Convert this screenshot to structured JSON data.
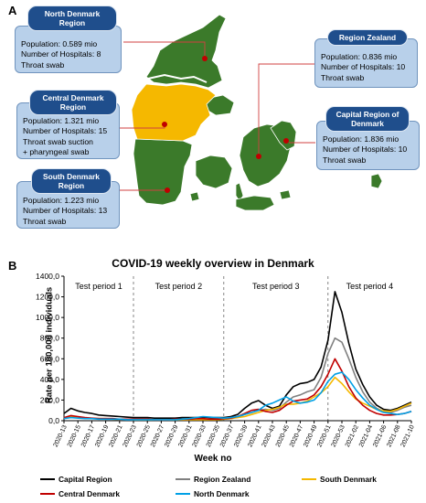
{
  "panels": {
    "a": "A",
    "b": "B"
  },
  "colors": {
    "map_green": "#3b7a2a",
    "map_yellow": "#f5b800",
    "box_fill": "#b8d0ea",
    "header_fill": "#1f4e8c",
    "connector": "#d04040",
    "dot": "#c00000"
  },
  "regions": [
    {
      "key": "north",
      "name_lines": [
        "North Denmark",
        "Region"
      ],
      "lines": [
        "Population: 0.589 mio",
        "Number of Hospitals: 8",
        "Throat swab"
      ]
    },
    {
      "key": "central",
      "name_lines": [
        "Central Denmark",
        "Region"
      ],
      "lines": [
        "Population: 1.321 mio",
        "Number of Hospitals: 15",
        "Throat swab suction",
        "+ pharyngeal  swab"
      ]
    },
    {
      "key": "south",
      "name_lines": [
        "South Denmark",
        "Region"
      ],
      "lines": [
        "Population: 1.223 mio",
        "Number of Hospitals: 13",
        "Throat swab"
      ]
    },
    {
      "key": "zealand",
      "name_lines": [
        "Region Zealand"
      ],
      "lines": [
        "Population: 0.836 mio",
        "Number of Hospitals: 10",
        "Throat swab"
      ]
    },
    {
      "key": "capital",
      "name_lines": [
        "Capital Region of",
        "Denmark"
      ],
      "lines": [
        "Population: 1.836 mio",
        "Number of Hospitals: 10",
        "Throat swab"
      ]
    }
  ],
  "chart_data": {
    "type": "line",
    "title": "COVID-19 weekly overview in Denmark",
    "xlabel": "Week no",
    "ylabel": "Rate per 100,000 individuals",
    "ylim": [
      0,
      1400
    ],
    "yticks": [
      "0,0",
      "200,0",
      "400,0",
      "600,0",
      "800,0",
      "1000,0",
      "1200,0",
      "1400,0"
    ],
    "grid": false,
    "legend_position": "bottom",
    "x": [
      "2020-13",
      "2020-14",
      "2020-15",
      "2020-16",
      "2020-17",
      "2020-18",
      "2020-19",
      "2020-20",
      "2020-21",
      "2020-22",
      "2020-23",
      "2020-24",
      "2020-25",
      "2020-26",
      "2020-27",
      "2020-28",
      "2020-29",
      "2020-30",
      "2020-31",
      "2020-32",
      "2020-33",
      "2020-34",
      "2020-35",
      "2020-36",
      "2020-37",
      "2020-38",
      "2020-39",
      "2020-40",
      "2020-41",
      "2020-42",
      "2020-43",
      "2020-44",
      "2020-45",
      "2020-46",
      "2020-47",
      "2020-48",
      "2020-49",
      "2020-50",
      "2020-51",
      "2020-52",
      "2020-53",
      "2021-01",
      "2021-02",
      "2021-03",
      "2021-04",
      "2021-05",
      "2021-06",
      "2021-07",
      "2021-08",
      "2021-09",
      "2021-10"
    ],
    "x_tick_labels": [
      "2020-13",
      "2020-15",
      "2020-17",
      "2020-19",
      "2020-21",
      "2020-23",
      "2020-25",
      "2020-27",
      "2020-29",
      "2020-31",
      "2020-33",
      "2020-35",
      "2020-37",
      "2020-39",
      "2020-41",
      "2020-43",
      "2020-45",
      "2020-47",
      "2020-49",
      "2020-51",
      "2020-53",
      "2021-02",
      "2021-04",
      "2021-06",
      "2021-08",
      "2021-10"
    ],
    "test_periods": [
      {
        "label": "Test period 1",
        "start": "2020-13",
        "end": "2020-23"
      },
      {
        "label": "Test period 2",
        "start": "2020-23",
        "end": "2020-36"
      },
      {
        "label": "Test period 3",
        "start": "2020-36",
        "end": "2020-51"
      },
      {
        "label": "Test period 4",
        "start": "2020-51",
        "end": "2021-10"
      }
    ],
    "series": [
      {
        "name": "Capital Region",
        "color": "#000000",
        "values": [
          70,
          120,
          95,
          80,
          70,
          55,
          50,
          45,
          40,
          35,
          30,
          30,
          30,
          25,
          25,
          25,
          25,
          30,
          30,
          30,
          35,
          30,
          30,
          30,
          40,
          60,
          120,
          170,
          195,
          150,
          120,
          140,
          250,
          330,
          360,
          370,
          400,
          520,
          780,
          1250,
          1050,
          750,
          500,
          350,
          230,
          150,
          110,
          100,
          120,
          150,
          180
        ]
      },
      {
        "name": "Region Zealand",
        "color": "#808080",
        "values": [
          30,
          40,
          30,
          25,
          20,
          20,
          15,
          15,
          10,
          10,
          10,
          10,
          10,
          10,
          10,
          10,
          10,
          10,
          10,
          15,
          15,
          15,
          15,
          15,
          20,
          35,
          60,
          80,
          100,
          110,
          100,
          120,
          180,
          230,
          250,
          280,
          300,
          420,
          650,
          800,
          760,
          600,
          420,
          280,
          180,
          120,
          90,
          80,
          100,
          130,
          150
        ]
      },
      {
        "name": "South Denmark",
        "color": "#f5b800",
        "values": [
          25,
          40,
          30,
          25,
          20,
          20,
          20,
          15,
          15,
          15,
          10,
          10,
          10,
          10,
          10,
          10,
          10,
          10,
          10,
          10,
          10,
          10,
          10,
          15,
          20,
          30,
          40,
          60,
          80,
          100,
          110,
          130,
          160,
          160,
          170,
          190,
          230,
          270,
          330,
          420,
          360,
          280,
          210,
          170,
          140,
          110,
          95,
          90,
          110,
          140,
          170
        ]
      },
      {
        "name": "Central Denmark",
        "color": "#c00000",
        "values": [
          30,
          50,
          40,
          30,
          25,
          20,
          20,
          20,
          15,
          15,
          15,
          15,
          15,
          10,
          10,
          10,
          15,
          15,
          15,
          20,
          20,
          15,
          15,
          20,
          25,
          40,
          70,
          100,
          110,
          90,
          80,
          100,
          150,
          190,
          200,
          210,
          250,
          330,
          450,
          600,
          480,
          330,
          220,
          150,
          100,
          70,
          55,
          55,
          60,
          70,
          90
        ]
      },
      {
        "name": "North Denmark",
        "color": "#00a0e6",
        "values": [
          20,
          30,
          25,
          20,
          20,
          15,
          15,
          15,
          15,
          10,
          10,
          10,
          10,
          10,
          10,
          10,
          10,
          15,
          20,
          30,
          40,
          35,
          30,
          25,
          30,
          40,
          60,
          80,
          100,
          150,
          170,
          200,
          230,
          190,
          170,
          180,
          200,
          270,
          380,
          450,
          470,
          400,
          300,
          220,
          150,
          110,
          80,
          70,
          60,
          70,
          90
        ]
      }
    ]
  }
}
